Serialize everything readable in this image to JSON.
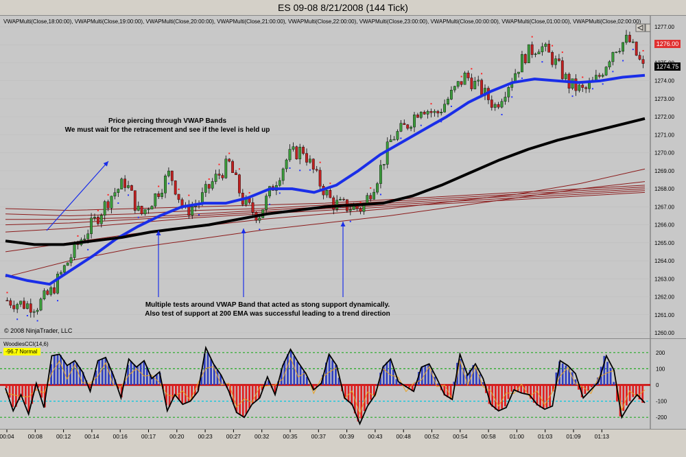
{
  "window": {
    "title": "ES 09-08  8/21/2008 (144 Tick)"
  },
  "indicator_strip": "VWAPMulti(Close,18:00:00),  VWAPMulti(Close,19:00:00),  VWAPMulti(Close,20:00:00),  VWAPMulti(Close,21:00:00),  VWAPMulti(Close,22:00:00),  VWAPMulti(Close,23:00:00),  VWAPMulti(Close,00:00:00),  VWAPMulti(Close,01:00:00),  VWAPMulti(Close,02:00:00)",
  "copyright": "© 2008 NinjaTrader, LLC",
  "annotations": {
    "top_line1": "Price piercing through VWAP Bands",
    "top_line2": "We must wait for the retracement and see if the level is held up",
    "bottom_line1": "Multiple tests around VWAP Band that acted as stong support dynamically.",
    "bottom_line2": "Also test of support at 200 EMA was successful leading to a trend direction"
  },
  "price_markers": {
    "upper": "1276.00",
    "last": "1274.75"
  },
  "cci": {
    "label": "WoodiesCCI(14,6)",
    "value_badge": "-96.7 Normal"
  },
  "colors": {
    "background": "#c8c8c8",
    "vwap_blue": "#1a2ee8",
    "ema_black": "#000000",
    "bands": "#8b1a1a",
    "up_candle": "#3a9a3a",
    "down_candle": "#c02020",
    "cci_pos": "#3040c0",
    "cci_neg": "#e02020",
    "upper_marker": "#e03030",
    "last_marker": "#000000",
    "badge": "#ffff00"
  },
  "chart_data": [
    {
      "type": "line",
      "title": "ES 09-08  8/21/2008 (144 Tick)",
      "ylim": [
        1260,
        1277
      ],
      "y_ticks": [
        "1277.00",
        "1276.00",
        "1275.00",
        "1274.00",
        "1273.00",
        "1272.00",
        "1271.00",
        "1270.00",
        "1269.00",
        "1268.00",
        "1267.00",
        "1266.00",
        "1265.00",
        "1264.00",
        "1263.00",
        "1262.00",
        "1261.00",
        "1260.00"
      ],
      "x_ticks": [
        "00:04",
        "00:08",
        "00:12",
        "00:14",
        "00:16",
        "00:17",
        "00:20",
        "00:23",
        "00:27",
        "00:32",
        "00:35",
        "00:37",
        "00:39",
        "00:43",
        "00:48",
        "00:52",
        "00:54",
        "00:58",
        "01:00",
        "01:03",
        "01:09",
        "01:13"
      ],
      "series": [
        {
          "values": [
            1261.8,
            1261.6,
            1261.5,
            1262.3,
            1263.8,
            1265.2,
            1266.3,
            1267.6,
            1268.4,
            1266.5,
            1267.6,
            1268.9,
            1266.7,
            1267.3,
            1268.5,
            1269.4,
            1267.2,
            1266.5,
            1268.2,
            1269.8,
            1270.2,
            1268.5,
            1267.2,
            1267.0,
            1266.9,
            1268.6,
            1270.8,
            1271.5,
            1272.6,
            1272.1,
            1273.2,
            1274.3,
            1273.5,
            1272.6,
            1274.0,
            1275.4,
            1276.0,
            1275.1,
            1273.8,
            1273.4,
            1274.2,
            1275.8,
            1276.3,
            1274.7
          ]
        },
        {
          "values": [
            1263.2,
            1262.9,
            1262.7,
            1263.5,
            1264.3,
            1265.2,
            1265.9,
            1266.5,
            1267.0,
            1267.2,
            1267.2,
            1267.5,
            1268.0,
            1268.0,
            1267.8,
            1268.2,
            1269.0,
            1269.9,
            1270.6,
            1271.3,
            1272.0,
            1272.8,
            1273.4,
            1273.9,
            1274.1,
            1274.0,
            1273.9,
            1274.0,
            1274.2,
            1274.3
          ]
        },
        {
          "values": [
            1265.1,
            1264.9,
            1264.9,
            1265.1,
            1265.3,
            1265.6,
            1265.8,
            1266.0,
            1266.3,
            1266.6,
            1266.8,
            1267.0,
            1267.1,
            1267.2,
            1267.6,
            1268.2,
            1268.9,
            1269.6,
            1270.2,
            1270.7,
            1271.1,
            1271.5,
            1271.9
          ]
        }
      ],
      "bands": [
        {
          "values": [
            1266.9,
            1266.8,
            1266.9,
            1267.0,
            1267.1,
            1267.2,
            1267.4,
            1267.6,
            1267.8,
            1268.0,
            1268.2
          ]
        },
        {
          "values": [
            1266.6,
            1266.5,
            1266.6,
            1266.8,
            1266.9,
            1267.1,
            1267.3,
            1267.5,
            1267.7,
            1267.9,
            1268.1
          ]
        },
        {
          "values": [
            1266.3,
            1266.3,
            1266.4,
            1266.6,
            1266.8,
            1267.0,
            1267.2,
            1267.4,
            1267.6,
            1267.8,
            1268.0
          ]
        },
        {
          "values": [
            1266.0,
            1266.1,
            1266.3,
            1266.5,
            1266.7,
            1266.9,
            1267.1,
            1267.3,
            1267.5,
            1267.7,
            1267.9
          ]
        },
        {
          "values": [
            1265.6,
            1265.8,
            1266.1,
            1266.4,
            1266.6,
            1266.8,
            1267.0,
            1267.2,
            1267.4,
            1267.6,
            1267.8
          ]
        },
        {
          "values": [
            1264.5,
            1265.0,
            1265.5,
            1265.9,
            1266.3,
            1266.6,
            1266.9,
            1267.3,
            1267.7,
            1268.3,
            1269.1
          ]
        },
        {
          "values": [
            1263.1,
            1264.0,
            1264.7,
            1265.2,
            1265.7,
            1266.1,
            1266.5,
            1267.0,
            1267.5,
            1268.0,
            1268.4
          ]
        }
      ]
    },
    {
      "type": "line",
      "title": "WoodiesCCI(14,6)",
      "ylim": [
        -250,
        250
      ],
      "y_ticks": [
        "200",
        "100",
        "0",
        "-100",
        "-200"
      ],
      "series": [
        {
          "values": [
            -20,
            -160,
            -60,
            -180,
            10,
            -140,
            180,
            190,
            120,
            150,
            80,
            -40,
            150,
            170,
            60,
            -80,
            160,
            110,
            150,
            40,
            80,
            -160,
            -60,
            -120,
            -100,
            -40,
            230,
            130,
            60,
            -40,
            -170,
            -200,
            -120,
            -80,
            50,
            -60,
            120,
            220,
            140,
            70,
            -30,
            10,
            190,
            120,
            -80,
            -120,
            -240,
            -130,
            -60,
            110,
            160,
            20,
            -10,
            -40,
            110,
            130,
            40,
            -60,
            -90,
            190,
            60,
            130,
            40,
            -120,
            -160,
            -140,
            -30,
            -50,
            -60,
            -120,
            -150,
            -130,
            150,
            120,
            70,
            -80,
            -30,
            20,
            180,
            90,
            -200,
            -120,
            -60,
            -110
          ]
        }
      ]
    }
  ]
}
